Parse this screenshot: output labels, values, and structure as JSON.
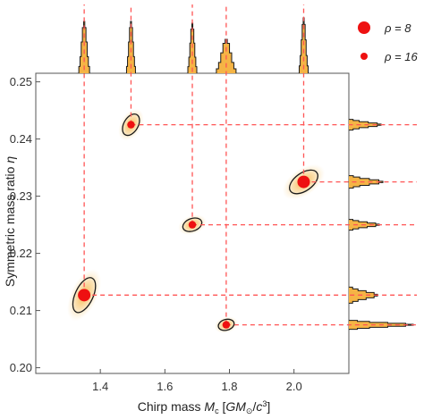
{
  "chart_data": {
    "type": "scatter",
    "title": "",
    "xlabel": "Chirp mass M_c [GM_⊙/c³]",
    "ylabel": "Symmetric mass ratio η",
    "xlim": [
      1.2,
      2.17
    ],
    "ylim": [
      0.199,
      0.2515
    ],
    "xticks": [
      "1.4",
      "1.6",
      "1.8",
      "2.0"
    ],
    "xtick_values": [
      1.4,
      1.6,
      1.8,
      2.0
    ],
    "yticks": [
      "0.20",
      "0.21",
      "0.22",
      "0.23",
      "0.24",
      "0.25"
    ],
    "ytick_values": [
      0.2,
      0.21,
      0.22,
      0.23,
      0.24,
      0.25
    ],
    "grid": false,
    "legend_position": "top-right",
    "legend": [
      {
        "label": "ρ = 8",
        "marker": "large-dot"
      },
      {
        "label": "ρ = 16",
        "marker": "small-dot"
      }
    ],
    "series": [
      {
        "name": "ρ = 8",
        "points": [
          {
            "x": 1.35,
            "y": 0.2127
          },
          {
            "x": 2.03,
            "y": 0.2325
          }
        ]
      },
      {
        "name": "ρ = 16",
        "points": [
          {
            "x": 1.495,
            "y": 0.2425
          },
          {
            "x": 1.685,
            "y": 0.225
          },
          {
            "x": 1.79,
            "y": 0.2075
          }
        ]
      }
    ],
    "has_marginal_histograms": true,
    "has_contours": true
  },
  "colors": {
    "marker": "#ee1111",
    "dashed_guide": "#ff5555",
    "histogram_fill": "#f5b445",
    "contour": "#1a1a1a",
    "cloud": "#f7c56a"
  },
  "legend": {
    "rho8": "ρ = 8",
    "rho16": "ρ = 16"
  }
}
